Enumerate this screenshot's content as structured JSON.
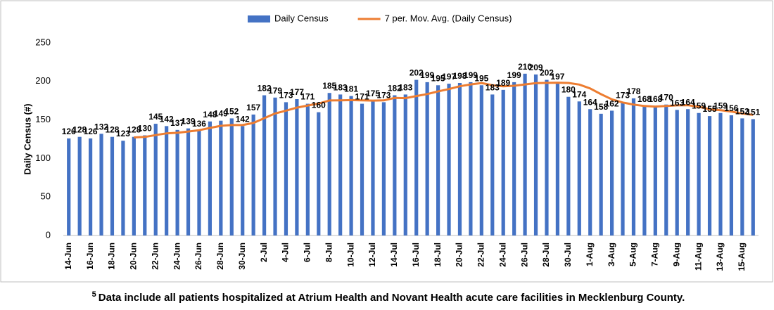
{
  "chart_data": {
    "type": "bar",
    "y_label": "Daily Census (#)",
    "categories": [
      "14-Jun",
      null,
      "16-Jun",
      null,
      "18-Jun",
      null,
      "20-Jun",
      null,
      "22-Jun",
      null,
      "24-Jun",
      null,
      "26-Jun",
      null,
      "28-Jun",
      null,
      "30-Jun",
      null,
      "2-Jul",
      null,
      "4-Jul",
      null,
      "6-Jul",
      null,
      "8-Jul",
      null,
      "10-Jul",
      null,
      "12-Jul",
      null,
      "14-Jul",
      null,
      "16-Jul",
      null,
      "18-Jul",
      null,
      "20-Jul",
      null,
      "22-Jul",
      null,
      "24-Jul",
      null,
      "26-Jul",
      null,
      "28-Jul",
      null,
      "30-Jul",
      null,
      "1-Aug",
      null,
      "3-Aug",
      null,
      "5-Aug",
      null,
      "7-Aug",
      null,
      "9-Aug",
      null,
      "11-Aug",
      null,
      "13-Aug",
      null,
      "15-Aug",
      null
    ],
    "series": [
      {
        "name": "Daily Census",
        "type": "bar",
        "color": "#4472c4",
        "values": [
          126,
          128,
          126,
          132,
          128,
          123,
          128,
          130,
          145,
          142,
          137,
          139,
          136,
          148,
          149,
          152,
          142,
          157,
          182,
          179,
          173,
          177,
          171,
          160,
          185,
          183,
          181,
          171,
          175,
          173,
          182,
          183,
          202,
          199,
          195,
          197,
          198,
          199,
          195,
          183,
          189,
          199,
          210,
          209,
          202,
          197,
          180,
          174,
          164,
          158,
          162,
          173,
          178,
          168,
          168,
          170,
          163,
          164,
          159,
          155,
          159,
          156,
          152,
          151
        ]
      },
      {
        "name": "7 per. Mov. Avg. (Daily Census)",
        "type": "line",
        "color": "#ed7d31",
        "values": [
          null,
          null,
          null,
          null,
          null,
          null,
          127.3,
          127.9,
          130.3,
          132.6,
          133.3,
          134.9,
          136.7,
          139.6,
          142.3,
          143.3,
          143.3,
          146.1,
          152.3,
          158.4,
          162,
          166,
          168.7,
          171.3,
          175.3,
          175.4,
          175.7,
          175.4,
          175.1,
          175.4,
          178.6,
          178.3,
          181,
          183.6,
          187,
          190.1,
          193.7,
          196.1,
          197.9,
          195.1,
          193.7,
          194.3,
          196.1,
          197.7,
          198.1,
          198.4,
          198,
          195.9,
          190.9,
          183.4,
          176.7,
          172.6,
          169.9,
          168.1,
          167.3,
          168.1,
          168.9,
          169.1,
          167.1,
          163.9,
          162.6,
          160.9,
          158.3,
          156.6
        ]
      }
    ],
    "ylim": [
      0,
      250
    ],
    "yticks": [
      0,
      50,
      100,
      150,
      200,
      250
    ],
    "grid": false,
    "legend": "top",
    "footnote_marker": "5",
    "footnote": "Data include all patients hospitalized at Atrium Health and Novant Health acute care facilities in Mecklenburg County."
  }
}
